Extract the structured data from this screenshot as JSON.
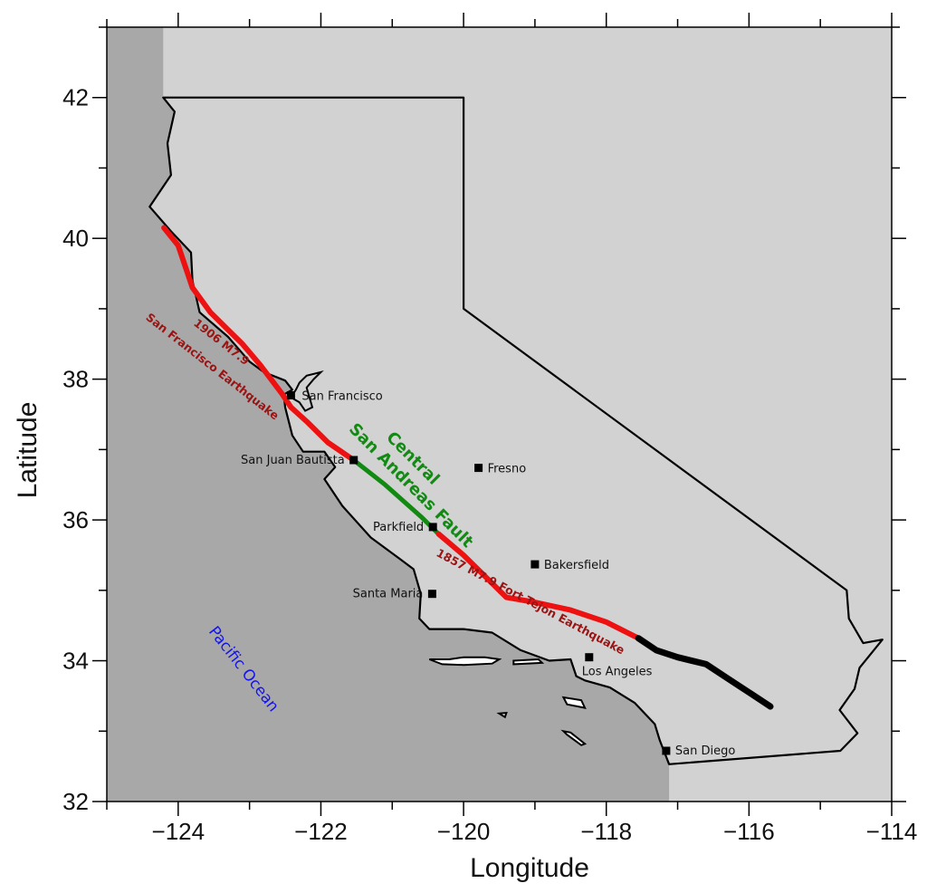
{
  "axes": {
    "xlabel": "Longitude",
    "ylabel": "Latitude",
    "x_ticks": [
      -124,
      -122,
      -120,
      -118,
      -116,
      -114
    ],
    "y_ticks": [
      32,
      34,
      36,
      38,
      40,
      42
    ],
    "x_tick_labels": [
      "−124",
      "−122",
      "−120",
      "−118",
      "−116",
      "−114"
    ],
    "y_tick_labels": [
      "32",
      "34",
      "36",
      "38",
      "40",
      "42"
    ],
    "xlim": [
      -125,
      -114
    ],
    "ylim": [
      32,
      43
    ]
  },
  "labels": {
    "ocean": "Pacific Ocean",
    "fault_line1": "Central",
    "fault_line2": "San Andreas Fault",
    "quake1906_line1": "1906 M7.9",
    "quake1906_line2": "San Francisco Earthquake",
    "quake1857": "1857 M7.9 Fort Tejon Earthquake"
  },
  "cities": [
    {
      "name": "San Francisco",
      "lon": -122.42,
      "lat": 37.77
    },
    {
      "name": "San Juan Bautista",
      "lon": -121.54,
      "lat": 36.85
    },
    {
      "name": "Fresno",
      "lon": -119.79,
      "lat": 36.74
    },
    {
      "name": "Parkfield",
      "lon": -120.43,
      "lat": 35.9
    },
    {
      "name": "Bakersfield",
      "lon": -119.0,
      "lat": 35.37
    },
    {
      "name": "Santa Maria",
      "lon": -120.44,
      "lat": 34.95
    },
    {
      "name": "Los Angeles",
      "lon": -118.24,
      "lat": 34.05
    },
    {
      "name": "San Diego",
      "lon": -117.16,
      "lat": 32.72
    }
  ],
  "colors": {
    "ocean": "#a8a8a8",
    "land": "#d2d2d2",
    "rupture_1906": "#ee1111",
    "rupture_1857": "#ee1111",
    "central_creeping": "#128a12",
    "southern_fault": "#000000",
    "quake_label": "#9b1414",
    "fault_label": "#138a13",
    "ocean_label": "#1414ee"
  },
  "geo": {
    "california_outline": [
      [
        -124.21,
        42.0
      ],
      [
        -120.0,
        42.0
      ],
      [
        -120.0,
        39.0
      ],
      [
        -114.63,
        35.0
      ],
      [
        -114.6,
        34.6
      ],
      [
        -114.4,
        34.25
      ],
      [
        -114.13,
        34.3
      ],
      [
        -114.45,
        33.9
      ],
      [
        -114.52,
        33.6
      ],
      [
        -114.73,
        33.3
      ],
      [
        -114.48,
        32.97
      ],
      [
        -114.72,
        32.72
      ],
      [
        -117.12,
        32.53
      ],
      [
        -117.25,
        32.87
      ],
      [
        -117.32,
        33.1
      ],
      [
        -117.6,
        33.4
      ],
      [
        -117.95,
        33.62
      ],
      [
        -118.3,
        33.72
      ],
      [
        -118.42,
        33.78
      ],
      [
        -118.5,
        34.02
      ],
      [
        -118.8,
        34.0
      ],
      [
        -119.2,
        34.15
      ],
      [
        -119.6,
        34.4
      ],
      [
        -120.0,
        34.45
      ],
      [
        -120.48,
        34.45
      ],
      [
        -120.62,
        34.6
      ],
      [
        -120.6,
        34.95
      ],
      [
        -120.7,
        35.3
      ],
      [
        -120.9,
        35.45
      ],
      [
        -121.3,
        35.75
      ],
      [
        -121.7,
        36.2
      ],
      [
        -121.95,
        36.58
      ],
      [
        -121.8,
        36.75
      ],
      [
        -121.95,
        36.97
      ],
      [
        -122.25,
        36.97
      ],
      [
        -122.4,
        37.2
      ],
      [
        -122.5,
        37.6
      ],
      [
        -122.52,
        37.78
      ],
      [
        -122.4,
        37.85
      ],
      [
        -122.5,
        37.98
      ],
      [
        -122.8,
        38.1
      ],
      [
        -123.0,
        38.25
      ],
      [
        -123.3,
        38.6
      ],
      [
        -123.7,
        38.95
      ],
      [
        -123.8,
        39.4
      ],
      [
        -123.82,
        39.8
      ],
      [
        -124.1,
        40.1
      ],
      [
        -124.4,
        40.45
      ],
      [
        -124.1,
        40.9
      ],
      [
        -124.15,
        41.35
      ],
      [
        -124.05,
        41.8
      ],
      [
        -124.21,
        42.0
      ]
    ],
    "sf_bay": [
      [
        -122.42,
        37.74
      ],
      [
        -122.35,
        37.85
      ],
      [
        -122.3,
        37.95
      ],
      [
        -122.2,
        38.05
      ],
      [
        -122.0,
        38.1
      ],
      [
        -122.1,
        38.0
      ],
      [
        -122.2,
        37.88
      ],
      [
        -122.12,
        37.6
      ],
      [
        -122.22,
        37.55
      ],
      [
        -122.3,
        37.67
      ],
      [
        -122.42,
        37.74
      ]
    ],
    "islands": [
      [
        [
          -120.48,
          34.02
        ],
        [
          -120.2,
          34.02
        ],
        [
          -120.0,
          34.05
        ],
        [
          -119.7,
          34.05
        ],
        [
          -119.5,
          34.02
        ],
        [
          -119.6,
          33.96
        ],
        [
          -120.0,
          33.94
        ],
        [
          -120.3,
          33.95
        ],
        [
          -120.48,
          34.02
        ]
      ],
      [
        [
          -119.3,
          34.0
        ],
        [
          -118.95,
          34.02
        ],
        [
          -118.9,
          33.97
        ],
        [
          -119.3,
          33.95
        ],
        [
          -119.3,
          34.0
        ]
      ],
      [
        [
          -118.6,
          33.48
        ],
        [
          -118.35,
          33.44
        ],
        [
          -118.3,
          33.33
        ],
        [
          -118.55,
          33.38
        ],
        [
          -118.6,
          33.48
        ]
      ],
      [
        [
          -119.5,
          33.25
        ],
        [
          -119.4,
          33.26
        ],
        [
          -119.42,
          33.2
        ],
        [
          -119.5,
          33.25
        ]
      ],
      [
        [
          -118.6,
          33.0
        ],
        [
          -118.55,
          32.95
        ],
        [
          -118.35,
          32.8
        ],
        [
          -118.3,
          32.82
        ],
        [
          -118.5,
          32.98
        ],
        [
          -118.6,
          33.0
        ]
      ]
    ],
    "rupture_1906": [
      [
        -124.2,
        40.15
      ],
      [
        -124.0,
        39.9
      ],
      [
        -123.8,
        39.3
      ],
      [
        -123.55,
        38.95
      ],
      [
        -123.1,
        38.5
      ],
      [
        -122.85,
        38.2
      ],
      [
        -122.55,
        37.8
      ],
      [
        -122.42,
        37.6
      ],
      [
        -122.2,
        37.4
      ],
      [
        -121.9,
        37.1
      ],
      [
        -121.54,
        36.85
      ]
    ],
    "central_creeping": [
      [
        -121.54,
        36.85
      ],
      [
        -121.1,
        36.5
      ],
      [
        -120.6,
        36.05
      ],
      [
        -120.35,
        35.8
      ]
    ],
    "rupture_1857": [
      [
        -120.35,
        35.8
      ],
      [
        -120.0,
        35.5
      ],
      [
        -119.7,
        35.2
      ],
      [
        -119.4,
        34.9
      ],
      [
        -119.0,
        34.83
      ],
      [
        -118.5,
        34.72
      ],
      [
        -118.0,
        34.55
      ],
      [
        -117.55,
        34.32
      ]
    ],
    "southern_fault": [
      [
        -117.55,
        34.32
      ],
      [
        -117.3,
        34.15
      ],
      [
        -117.0,
        34.05
      ],
      [
        -116.6,
        33.95
      ],
      [
        -116.3,
        33.75
      ],
      [
        -116.0,
        33.55
      ],
      [
        -115.7,
        33.35
      ]
    ]
  }
}
